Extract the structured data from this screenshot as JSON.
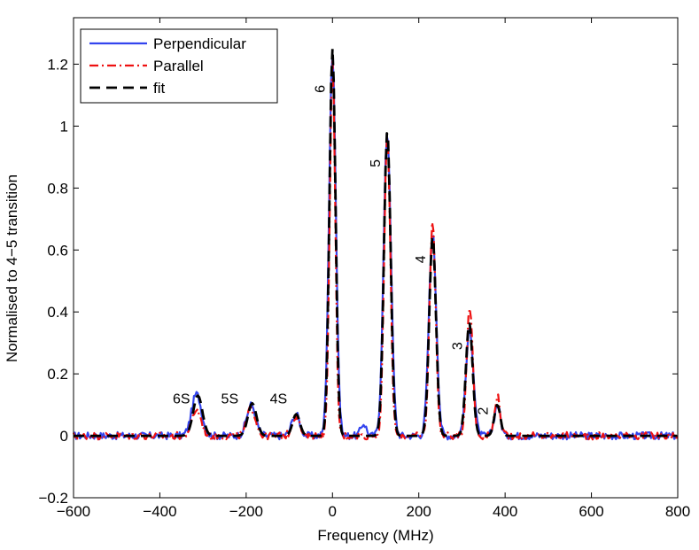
{
  "chart_data": {
    "type": "line",
    "title": "",
    "xlabel": "Frequency (MHz)",
    "ylabel": "Normalised to 4−5 transition",
    "xlim": [
      -600,
      800
    ],
    "ylim": [
      -0.2,
      1.35
    ],
    "xticks": [
      -600,
      -400,
      -200,
      0,
      200,
      400,
      600,
      800
    ],
    "xtick_labels": [
      "−600",
      "−400",
      "−200",
      "0",
      "200",
      "400",
      "600",
      "800"
    ],
    "yticks": [
      -0.2,
      0,
      0.2,
      0.4,
      0.6,
      0.8,
      1,
      1.2
    ],
    "ytick_labels": [
      "−0.2",
      "0",
      "0.2",
      "0.4",
      "0.6",
      "0.8",
      "1",
      "1.2"
    ],
    "grid": false,
    "legend": {
      "location": "top-left",
      "entries": [
        "Perpendicular",
        "Parallel",
        "fit"
      ]
    },
    "series": [
      {
        "name": "Perpendicular",
        "color": "#3344ee",
        "style": "solid",
        "peaks": [
          {
            "center": -315,
            "height": 0.135,
            "width": 16
          },
          {
            "center": -188,
            "height": 0.1,
            "width": 15
          },
          {
            "center": -85,
            "height": 0.07,
            "width": 13
          },
          {
            "center": 0,
            "height": 1.24,
            "width": 11
          },
          {
            "center": 72,
            "height": 0.04,
            "width": 9
          },
          {
            "center": 127,
            "height": 0.98,
            "width": 12
          },
          {
            "center": 232,
            "height": 0.655,
            "width": 12
          },
          {
            "center": 318,
            "height": 0.345,
            "width": 12
          },
          {
            "center": 382,
            "height": 0.1,
            "width": 10
          }
        ]
      },
      {
        "name": "Parallel",
        "color": "#ee1111",
        "style": "dash-dot",
        "peaks": [
          {
            "center": -315,
            "height": 0.085,
            "width": 15
          },
          {
            "center": -188,
            "height": 0.09,
            "width": 14
          },
          {
            "center": -85,
            "height": 0.065,
            "width": 12
          },
          {
            "center": 0,
            "height": 1.21,
            "width": 9
          },
          {
            "center": 127,
            "height": 0.975,
            "width": 10
          },
          {
            "center": 232,
            "height": 0.7,
            "width": 10
          },
          {
            "center": 318,
            "height": 0.42,
            "width": 10
          },
          {
            "center": 382,
            "height": 0.13,
            "width": 9
          }
        ]
      },
      {
        "name": "fit",
        "color": "#000000",
        "style": "dashed",
        "peaks": [
          {
            "center": -312,
            "height": 0.13,
            "width": 15
          },
          {
            "center": -186,
            "height": 0.105,
            "width": 14
          },
          {
            "center": -84,
            "height": 0.07,
            "width": 12
          },
          {
            "center": 0,
            "height": 1.25,
            "width": 10
          },
          {
            "center": 127,
            "height": 0.985,
            "width": 11
          },
          {
            "center": 232,
            "height": 0.645,
            "width": 11
          },
          {
            "center": 317,
            "height": 0.365,
            "width": 11
          },
          {
            "center": 382,
            "height": 0.1,
            "width": 10
          }
        ]
      }
    ],
    "annotations": [
      {
        "text": "6",
        "x": -18,
        "y": 1.12,
        "rotated": true
      },
      {
        "text": "5",
        "x": 110,
        "y": 0.88,
        "rotated": true
      },
      {
        "text": "4",
        "x": 215,
        "y": 0.57,
        "rotated": true
      },
      {
        "text": "3",
        "x": 300,
        "y": 0.29,
        "rotated": true
      },
      {
        "text": "2",
        "x": 360,
        "y": 0.08,
        "rotated": true
      },
      {
        "text": "6S",
        "x": -350,
        "y": 0.105,
        "rotated": false
      },
      {
        "text": "5S",
        "x": -238,
        "y": 0.105,
        "rotated": false
      },
      {
        "text": "4S",
        "x": -125,
        "y": 0.105,
        "rotated": false
      }
    ]
  }
}
